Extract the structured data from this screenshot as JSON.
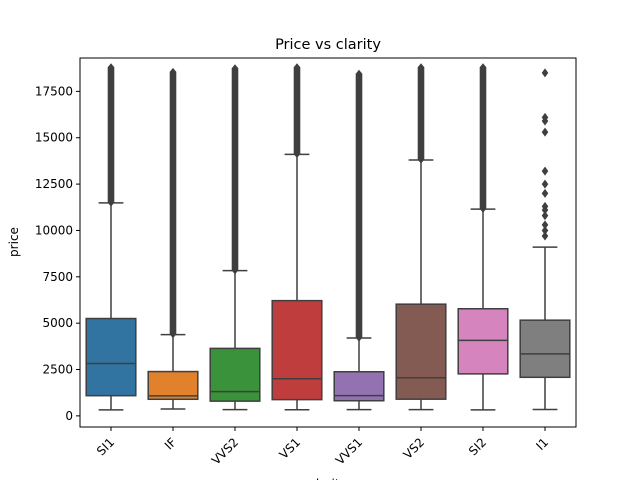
{
  "chart_data": {
    "type": "box",
    "title": "Price vs clarity",
    "xlabel": "clarity",
    "ylabel": "price",
    "ylim": [
      -600,
      19300
    ],
    "yticks": [
      0,
      2500,
      5000,
      7500,
      10000,
      12500,
      15000,
      17500
    ],
    "ytick_labels": [
      "0",
      "2500",
      "5000",
      "7500",
      "10000",
      "12500",
      "15000",
      "17500"
    ],
    "categories": [
      "SI1",
      "IF",
      "VVS2",
      "VS1",
      "VVS1",
      "VS2",
      "SI2",
      "I1"
    ],
    "colors": [
      "#3274a1",
      "#e1812c",
      "#3a923a",
      "#c03d3e",
      "#9372b2",
      "#845b53",
      "#d684bd",
      "#7f7f7f"
    ],
    "boxes": [
      {
        "name": "SI1",
        "min": 326,
        "q1": 1089,
        "median": 2822,
        "q3": 5250,
        "whisker_high": 11490,
        "outlier_low": 11500,
        "outlier_high": 18800
      },
      {
        "name": "IF",
        "min": 369,
        "q1": 895,
        "median": 1080,
        "q3": 2390,
        "whisker_high": 4380,
        "outlier_low": 4400,
        "outlier_high": 18550
      },
      {
        "name": "VVS2",
        "min": 336,
        "q1": 794,
        "median": 1311,
        "q3": 3640,
        "whisker_high": 7830,
        "outlier_low": 7850,
        "outlier_high": 18750
      },
      {
        "name": "VS1",
        "min": 327,
        "q1": 876,
        "median": 2005,
        "q3": 6215,
        "whisker_high": 14100,
        "outlier_low": 14120,
        "outlier_high": 18800
      },
      {
        "name": "VVS1",
        "min": 336,
        "q1": 816,
        "median": 1093,
        "q3": 2379,
        "whisker_high": 4200,
        "outlier_low": 4220,
        "outlier_high": 18450
      },
      {
        "name": "VS2",
        "min": 334,
        "q1": 900,
        "median": 2054,
        "q3": 6024,
        "whisker_high": 13800,
        "outlier_low": 13820,
        "outlier_high": 18800
      },
      {
        "name": "SI2",
        "min": 326,
        "q1": 2264,
        "median": 4072,
        "q3": 5777,
        "whisker_high": 11150,
        "outlier_low": 11170,
        "outlier_high": 18800
      },
      {
        "name": "I1",
        "min": 345,
        "q1": 2080,
        "median": 3344,
        "q3": 5161,
        "whisker_high": 9100,
        "outlier_points": [
          9700,
          10000,
          10300,
          10800,
          11100,
          11300,
          12000,
          12500,
          13200,
          15300,
          15900,
          16100,
          18500
        ]
      }
    ]
  }
}
